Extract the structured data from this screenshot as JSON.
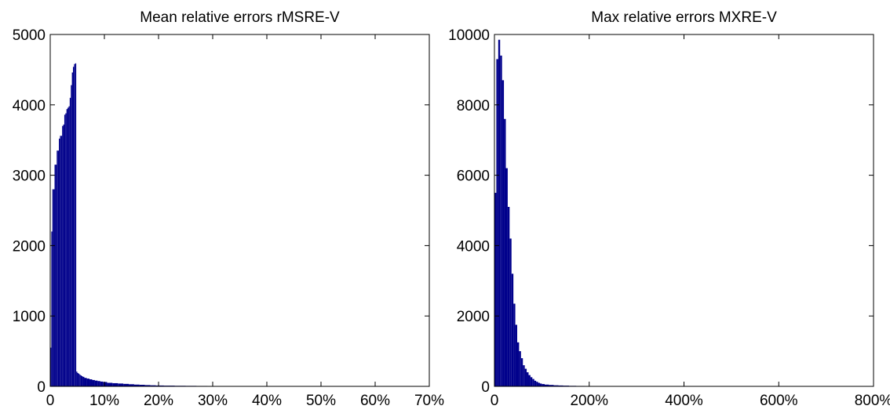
{
  "chart_data": [
    {
      "type": "bar",
      "title": "Mean relative errors rMSRE-V",
      "xlabel": "",
      "ylabel": "",
      "bar_color": "#00008b",
      "xlim": [
        0,
        70
      ],
      "ylim": [
        0,
        5000
      ],
      "grid": false,
      "x_ticks": [
        {
          "value": 0,
          "label": "0"
        },
        {
          "value": 10,
          "label": "10%"
        },
        {
          "value": 20,
          "label": "20%"
        },
        {
          "value": 30,
          "label": "30%"
        },
        {
          "value": 40,
          "label": "40%"
        },
        {
          "value": 50,
          "label": "50%"
        },
        {
          "value": 60,
          "label": "60%"
        },
        {
          "value": 70,
          "label": "70%"
        }
      ],
      "y_ticks": [
        {
          "value": 0,
          "label": "0"
        },
        {
          "value": 1000,
          "label": "1000"
        },
        {
          "value": 2000,
          "label": "2000"
        },
        {
          "value": 3000,
          "label": "3000"
        },
        {
          "value": 4000,
          "label": "4000"
        },
        {
          "value": 5000,
          "label": "5000"
        }
      ],
      "x": [
        0.1,
        0.3,
        0.5,
        0.7,
        0.9,
        1.1,
        1.3,
        1.5,
        1.7,
        1.9,
        2.1,
        2.3,
        2.5,
        2.7,
        2.9,
        3.1,
        3.3,
        3.5,
        3.7,
        3.9,
        4.1,
        4.3,
        4.5,
        4.7,
        4.9,
        5.1,
        5.3,
        5.5,
        5.7,
        5.9,
        6.1,
        6.5,
        7,
        7.5,
        8,
        8.5,
        9,
        9.5,
        10,
        11,
        12,
        13,
        14,
        15,
        16,
        17,
        18,
        19,
        20,
        22,
        24,
        26,
        28,
        30,
        33,
        36,
        40,
        45,
        50
      ],
      "values": [
        550,
        2200,
        2800,
        2800,
        3150,
        3150,
        3350,
        3350,
        3520,
        3560,
        3560,
        3700,
        3720,
        3860,
        3880,
        3940,
        3960,
        3980,
        4100,
        4280,
        4460,
        4540,
        4580,
        4590,
        210,
        190,
        180,
        165,
        155,
        145,
        135,
        120,
        110,
        100,
        90,
        82,
        75,
        68,
        62,
        50,
        45,
        40,
        35,
        30,
        25,
        22,
        18,
        15,
        12,
        10,
        8,
        7,
        6,
        5,
        4,
        3,
        2,
        2,
        1
      ]
    },
    {
      "type": "bar",
      "title": "Max relative errors MXRE-V",
      "xlabel": "",
      "ylabel": "",
      "bar_color": "#00008b",
      "xlim": [
        0,
        800
      ],
      "ylim": [
        0,
        10000
      ],
      "grid": false,
      "x_ticks": [
        {
          "value": 0,
          "label": "0"
        },
        {
          "value": 200,
          "label": "200%"
        },
        {
          "value": 400,
          "label": "400%"
        },
        {
          "value": 600,
          "label": "600%"
        },
        {
          "value": 800,
          "label": "800%"
        }
      ],
      "y_ticks": [
        {
          "value": 0,
          "label": "0"
        },
        {
          "value": 2000,
          "label": "2000"
        },
        {
          "value": 4000,
          "label": "4000"
        },
        {
          "value": 6000,
          "label": "6000"
        },
        {
          "value": 8000,
          "label": "8000"
        },
        {
          "value": 10000,
          "label": "10000"
        }
      ],
      "x": [
        2,
        6,
        10,
        14,
        18,
        22,
        26,
        30,
        34,
        38,
        42,
        46,
        50,
        54,
        58,
        62,
        66,
        70,
        74,
        78,
        82,
        86,
        90,
        94,
        98,
        102,
        110,
        120,
        130,
        140,
        150,
        165,
        180,
        200,
        225,
        250,
        280,
        320,
        360,
        400,
        450,
        500
      ],
      "values": [
        5500,
        9300,
        9850,
        9400,
        8700,
        7600,
        6200,
        5100,
        4200,
        3200,
        2350,
        1750,
        1250,
        1000,
        800,
        600,
        500,
        400,
        320,
        260,
        210,
        160,
        130,
        100,
        80,
        65,
        50,
        40,
        30,
        25,
        20,
        15,
        12,
        10,
        8,
        6,
        5,
        4,
        3,
        2,
        1,
        1
      ]
    }
  ]
}
